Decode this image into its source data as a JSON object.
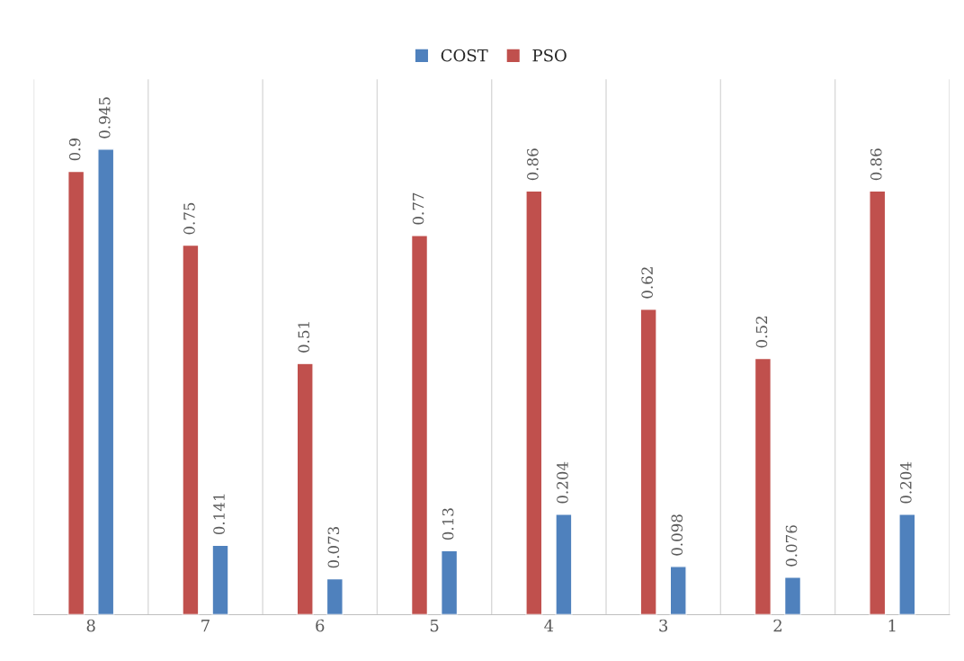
{
  "chart_data": {
    "type": "bar",
    "categories": [
      "8",
      "7",
      "6",
      "5",
      "4",
      "3",
      "2",
      "1"
    ],
    "series": [
      {
        "name": "PSO",
        "color": "#c0504d",
        "values": [
          0.9,
          0.75,
          0.51,
          0.77,
          0.86,
          0.62,
          0.52,
          0.86
        ]
      },
      {
        "name": "COST",
        "color": "#4f81bd",
        "values": [
          0.945,
          0.141,
          0.073,
          0.13,
          0.204,
          0.098,
          0.076,
          0.204
        ]
      }
    ],
    "data_labels": true,
    "grid": "x",
    "legend": "top",
    "tick_labels": "x"
  }
}
